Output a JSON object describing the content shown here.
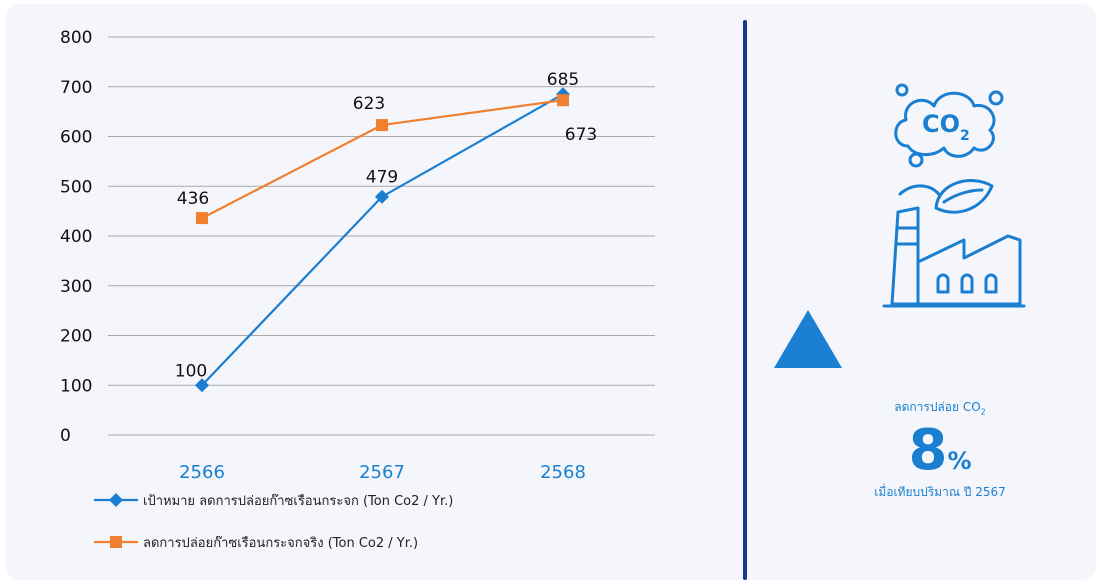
{
  "chart_data": {
    "type": "line",
    "categories": [
      "2566",
      "2567",
      "2568"
    ],
    "ylim": [
      0,
      800
    ],
    "yticks": [
      0,
      100,
      200,
      300,
      400,
      500,
      600,
      700,
      800
    ],
    "grid": true,
    "legend_position": "bottom-left",
    "series": [
      {
        "name": "เป้าหมาย ลดการปล่อยก๊าซเรือนกระจก (Ton Co2 / Yr.)",
        "values": [
          100,
          479,
          685
        ],
        "color": "#1a7fd1",
        "marker": "diamond"
      },
      {
        "name": "ลดการปล่อยก๊าซเรือนกระจกจริง (Ton Co2 / Yr.)",
        "values": [
          436,
          623,
          673
        ],
        "color": "#f07f2f",
        "marker": "square"
      }
    ]
  },
  "summary": {
    "label": "ลดการปล่อย CO",
    "label_subscript": "2",
    "percent_value": "8",
    "percent_sign": "%",
    "comparison": "เมื่อเทียบปริมาณ ปี 2567",
    "icon": "co2-factory-icon",
    "trend_icon": "triangle-up-icon",
    "accent_color": "#1a7fd1"
  }
}
